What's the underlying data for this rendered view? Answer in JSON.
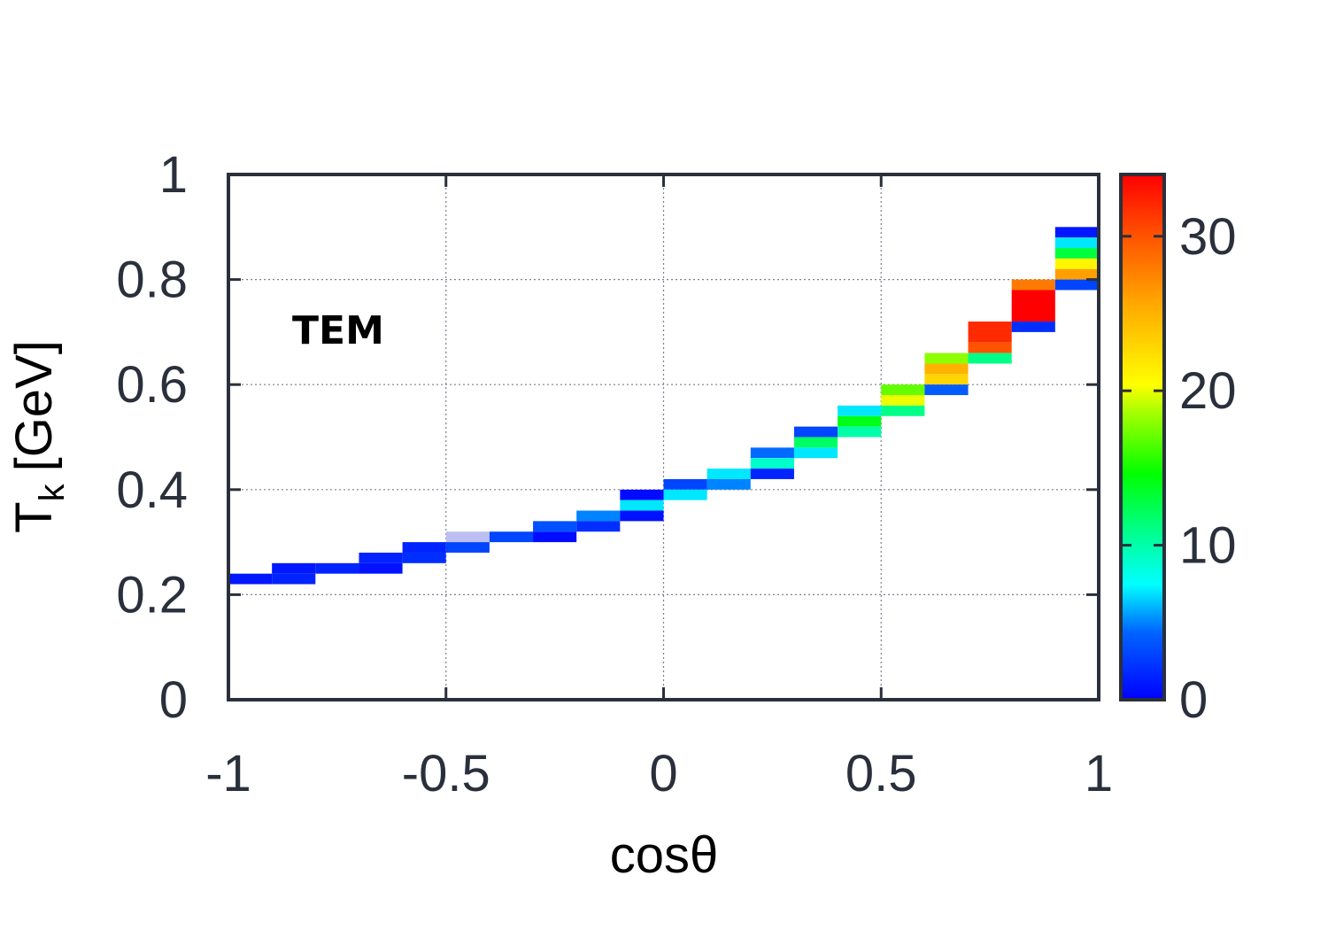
{
  "chart_data": {
    "type": "heatmap",
    "label": "TEM",
    "xlabel": "cosθ",
    "ylabel_main": "T",
    "ylabel_sub": "k",
    "ylabel_unit": "[GeV]",
    "xlim": [
      -1,
      1
    ],
    "ylim": [
      0,
      1
    ],
    "x_ticks": [
      -1,
      -0.5,
      0,
      0.5,
      1
    ],
    "x_tick_labels": [
      "-1",
      "-0.5",
      "0",
      "0.5",
      "1"
    ],
    "y_ticks": [
      0,
      0.2,
      0.4,
      0.6,
      0.8,
      1
    ],
    "y_tick_labels": [
      "0",
      "0.2",
      "0.4",
      "0.6",
      "0.8",
      "1"
    ],
    "grid": true,
    "colorbar": {
      "range": [
        0,
        34
      ],
      "ticks": [
        0,
        10,
        20,
        30
      ],
      "tick_labels": [
        "0",
        "10",
        "20",
        "30"
      ]
    },
    "cells": [
      {
        "x": -1.0,
        "x2": -0.9,
        "y": 0.22,
        "y2": 0.24,
        "v": 1
      },
      {
        "x": -0.9,
        "x2": -0.8,
        "y": 0.24,
        "y2": 0.26,
        "v": 1
      },
      {
        "x": -0.9,
        "x2": -0.8,
        "y": 0.22,
        "y2": 0.24,
        "v": 1.5
      },
      {
        "x": -0.8,
        "x2": -0.7,
        "y": 0.24,
        "y2": 0.26,
        "v": 1.5
      },
      {
        "x": -0.7,
        "x2": -0.6,
        "y": 0.26,
        "y2": 0.28,
        "v": 1.5
      },
      {
        "x": -0.7,
        "x2": -0.6,
        "y": 0.24,
        "y2": 0.26,
        "v": 0.8
      },
      {
        "x": -0.6,
        "x2": -0.5,
        "y": 0.28,
        "y2": 0.3,
        "v": 1.5
      },
      {
        "x": -0.6,
        "x2": -0.5,
        "y": 0.26,
        "y2": 0.28,
        "v": 2
      },
      {
        "x": -0.5,
        "x2": -0.4,
        "y": 0.3,
        "y2": 0.32,
        "v": -1
      },
      {
        "x": -0.5,
        "x2": -0.4,
        "y": 0.28,
        "y2": 0.3,
        "v": 3
      },
      {
        "x": -0.4,
        "x2": -0.3,
        "y": 0.3,
        "y2": 0.32,
        "v": 3
      },
      {
        "x": -0.3,
        "x2": -0.2,
        "y": 0.32,
        "y2": 0.34,
        "v": 3.5
      },
      {
        "x": -0.3,
        "x2": -0.2,
        "y": 0.3,
        "y2": 0.32,
        "v": 0.5
      },
      {
        "x": -0.2,
        "x2": -0.1,
        "y": 0.34,
        "y2": 0.36,
        "v": 5
      },
      {
        "x": -0.2,
        "x2": -0.1,
        "y": 0.32,
        "y2": 0.34,
        "v": 2
      },
      {
        "x": -0.1,
        "x2": 0.0,
        "y": 0.38,
        "y2": 0.4,
        "v": 0.5
      },
      {
        "x": -0.1,
        "x2": 0.0,
        "y": 0.36,
        "y2": 0.38,
        "v": 7
      },
      {
        "x": -0.1,
        "x2": 0.0,
        "y": 0.34,
        "y2": 0.36,
        "v": 0.8
      },
      {
        "x": 0.0,
        "x2": 0.1,
        "y": 0.4,
        "y2": 0.42,
        "v": 3
      },
      {
        "x": 0.0,
        "x2": 0.1,
        "y": 0.38,
        "y2": 0.4,
        "v": 7
      },
      {
        "x": 0.1,
        "x2": 0.2,
        "y": 0.42,
        "y2": 0.44,
        "v": 7
      },
      {
        "x": 0.1,
        "x2": 0.2,
        "y": 0.4,
        "y2": 0.42,
        "v": 5
      },
      {
        "x": 0.2,
        "x2": 0.3,
        "y": 0.46,
        "y2": 0.48,
        "v": 4.5
      },
      {
        "x": 0.2,
        "x2": 0.3,
        "y": 0.44,
        "y2": 0.46,
        "v": 9
      },
      {
        "x": 0.2,
        "x2": 0.3,
        "y": 0.42,
        "y2": 0.44,
        "v": 1.5
      },
      {
        "x": 0.3,
        "x2": 0.4,
        "y": 0.5,
        "y2": 0.52,
        "v": 3
      },
      {
        "x": 0.3,
        "x2": 0.4,
        "y": 0.48,
        "y2": 0.5,
        "v": 12
      },
      {
        "x": 0.3,
        "x2": 0.4,
        "y": 0.46,
        "y2": 0.48,
        "v": 7
      },
      {
        "x": 0.4,
        "x2": 0.5,
        "y": 0.54,
        "y2": 0.56,
        "v": 7
      },
      {
        "x": 0.4,
        "x2": 0.5,
        "y": 0.52,
        "y2": 0.54,
        "v": 14
      },
      {
        "x": 0.4,
        "x2": 0.5,
        "y": 0.5,
        "y2": 0.52,
        "v": 10
      },
      {
        "x": 0.5,
        "x2": 0.6,
        "y": 0.58,
        "y2": 0.6,
        "v": 17
      },
      {
        "x": 0.5,
        "x2": 0.6,
        "y": 0.56,
        "y2": 0.58,
        "v": 20
      },
      {
        "x": 0.5,
        "x2": 0.6,
        "y": 0.54,
        "y2": 0.56,
        "v": 11
      },
      {
        "x": 0.6,
        "x2": 0.7,
        "y": 0.64,
        "y2": 0.66,
        "v": 18
      },
      {
        "x": 0.6,
        "x2": 0.7,
        "y": 0.62,
        "y2": 0.64,
        "v": 25
      },
      {
        "x": 0.6,
        "x2": 0.7,
        "y": 0.6,
        "y2": 0.62,
        "v": 23
      },
      {
        "x": 0.6,
        "x2": 0.7,
        "y": 0.58,
        "y2": 0.6,
        "v": 4
      },
      {
        "x": 0.7,
        "x2": 0.8,
        "y": 0.68,
        "y2": 0.72,
        "v": 32
      },
      {
        "x": 0.7,
        "x2": 0.8,
        "y": 0.66,
        "y2": 0.68,
        "v": 30
      },
      {
        "x": 0.7,
        "x2": 0.8,
        "y": 0.64,
        "y2": 0.66,
        "v": 11
      },
      {
        "x": 0.8,
        "x2": 0.9,
        "y": 0.78,
        "y2": 0.8,
        "v": 28
      },
      {
        "x": 0.8,
        "x2": 0.9,
        "y": 0.72,
        "y2": 0.78,
        "v": 34
      },
      {
        "x": 0.8,
        "x2": 0.9,
        "y": 0.7,
        "y2": 0.72,
        "v": 2
      },
      {
        "x": 0.9,
        "x2": 1.0,
        "y": 0.88,
        "y2": 0.9,
        "v": 1
      },
      {
        "x": 0.9,
        "x2": 1.0,
        "y": 0.86,
        "y2": 0.88,
        "v": 7
      },
      {
        "x": 0.9,
        "x2": 1.0,
        "y": 0.84,
        "y2": 0.86,
        "v": 13
      },
      {
        "x": 0.9,
        "x2": 1.0,
        "y": 0.82,
        "y2": 0.84,
        "v": 21
      },
      {
        "x": 0.9,
        "x2": 1.0,
        "y": 0.8,
        "y2": 0.82,
        "v": 26
      },
      {
        "x": 0.9,
        "x2": 1.0,
        "y": 0.78,
        "y2": 0.8,
        "v": 3
      }
    ]
  }
}
